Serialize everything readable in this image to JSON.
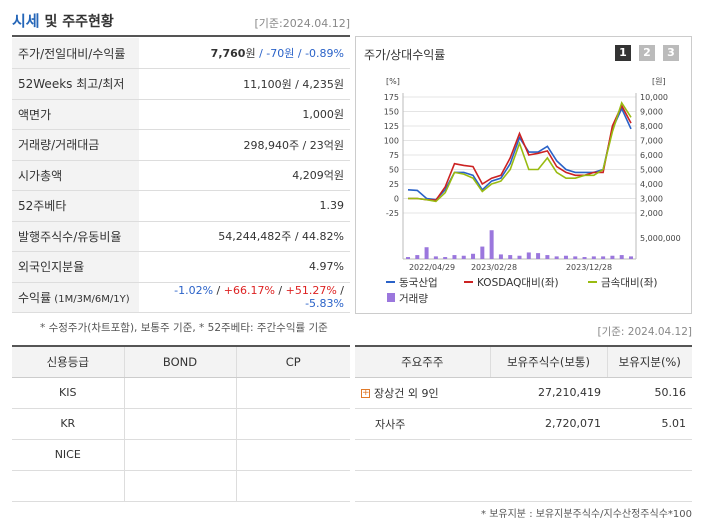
{
  "header": {
    "title_main": "시세",
    "title_sub": " 및 주주현황",
    "basis": "[기준:2024.04.12]"
  },
  "info_rows": [
    {
      "label": "주가/전일대비/수익률",
      "price": "7,760",
      "unit": "원",
      "change": " / -70원 / -0.89%"
    },
    {
      "label": "52Weeks 최고/최저",
      "value": "11,100원 / 4,235원"
    },
    {
      "label": "액면가",
      "value": "1,000원"
    },
    {
      "label": "거래량/거래대금",
      "value": "298,940주 / 23억원"
    },
    {
      "label": "시가총액",
      "value": "4,209억원"
    },
    {
      "label": "52주베타",
      "value": "1.39"
    },
    {
      "label": "발행주식수/유동비율",
      "value": "54,244,482주 / 44.82%"
    },
    {
      "label": "외국인지분율",
      "value": "4.97%"
    },
    {
      "label": "수익률",
      "label_small": " (1M/3M/6M/1Y)",
      "r1": "-1.02%",
      "sep": "/ ",
      "r2": "+66.17%",
      "r3": "+51.27%",
      "r4": "-5.83%"
    }
  ],
  "note1": "* 수정주가(차트포함), 보통주 기준, * 52주베타: 주간수익률 기준",
  "chart_panel": {
    "title": "주가/상대수익률",
    "tabs": [
      "1",
      "2",
      "3"
    ],
    "active_tab": "1"
  },
  "chart_data": {
    "type": "line",
    "x_tick_labels": [
      "2022/04/29",
      "2023/02/28",
      "2023/12/28"
    ],
    "left_unit": "[%]",
    "right_unit": "[원]",
    "left_ticks": [
      "175",
      "150",
      "125",
      "100",
      "75",
      "50",
      "25",
      "0",
      "-25"
    ],
    "right_ticks": [
      "10,000",
      "9,000",
      "8,000",
      "7,000",
      "6,000",
      "5,000",
      "4,000",
      "3,000",
      "2,000"
    ],
    "volume_tick": "5,000,000",
    "ylim_left": [
      -25,
      175
    ],
    "series": [
      {
        "name": "동국산업",
        "color": "#2a62c8",
        "values": [
          15,
          14,
          0,
          -2,
          15,
          45,
          45,
          40,
          15,
          30,
          35,
          60,
          105,
          80,
          80,
          90,
          65,
          50,
          45,
          45,
          45,
          50,
          120,
          155,
          120
        ]
      },
      {
        "name": "KOSDAQ대비(좌)",
        "color": "#cc2222",
        "values": [
          0,
          0,
          -2,
          -3,
          20,
          60,
          57,
          55,
          25,
          35,
          40,
          70,
          112,
          75,
          78,
          82,
          55,
          45,
          40,
          40,
          45,
          45,
          125,
          160,
          130
        ]
      },
      {
        "name": "금속대비(좌)",
        "color": "#99bb11",
        "values": [
          0,
          0,
          -2,
          -5,
          10,
          45,
          42,
          35,
          12,
          25,
          30,
          50,
          95,
          50,
          50,
          70,
          45,
          35,
          35,
          40,
          40,
          50,
          115,
          165,
          140
        ]
      }
    ],
    "volume": {
      "name": "거래량",
      "color": "#9b77dd",
      "values": [
        0.15,
        0.3,
        0.9,
        0.2,
        0.15,
        0.3,
        0.25,
        0.4,
        0.95,
        2.2,
        0.35,
        0.3,
        0.25,
        0.5,
        0.45,
        0.3,
        0.2,
        0.25,
        0.2,
        0.15,
        0.2,
        0.2,
        0.25,
        0.3,
        0.2
      ]
    }
  },
  "basis2": "[기준: 2024.04.12]",
  "credit": {
    "headers": [
      "신용등급",
      "BOND",
      "CP"
    ],
    "rows": [
      [
        "KIS",
        "",
        ""
      ],
      [
        "KR",
        "",
        ""
      ],
      [
        "NICE",
        "",
        ""
      ],
      [
        "",
        "",
        ""
      ]
    ]
  },
  "holders": {
    "headers": [
      "주요주주",
      "보유주식수(보통)",
      "보유지분(%)"
    ],
    "rows": [
      {
        "name": "장상건 외 9인",
        "shares": "27,210,419",
        "pct": "50.16",
        "expand": "+"
      },
      {
        "name": "자사주",
        "shares": "2,720,071",
        "pct": "5.01",
        "expand": ""
      },
      {
        "name": "",
        "shares": "",
        "pct": "",
        "expand": ""
      },
      {
        "name": "",
        "shares": "",
        "pct": "",
        "expand": ""
      }
    ]
  },
  "note2": "* 보유지분 : 보유지분주식수/지수산정주식수*100"
}
